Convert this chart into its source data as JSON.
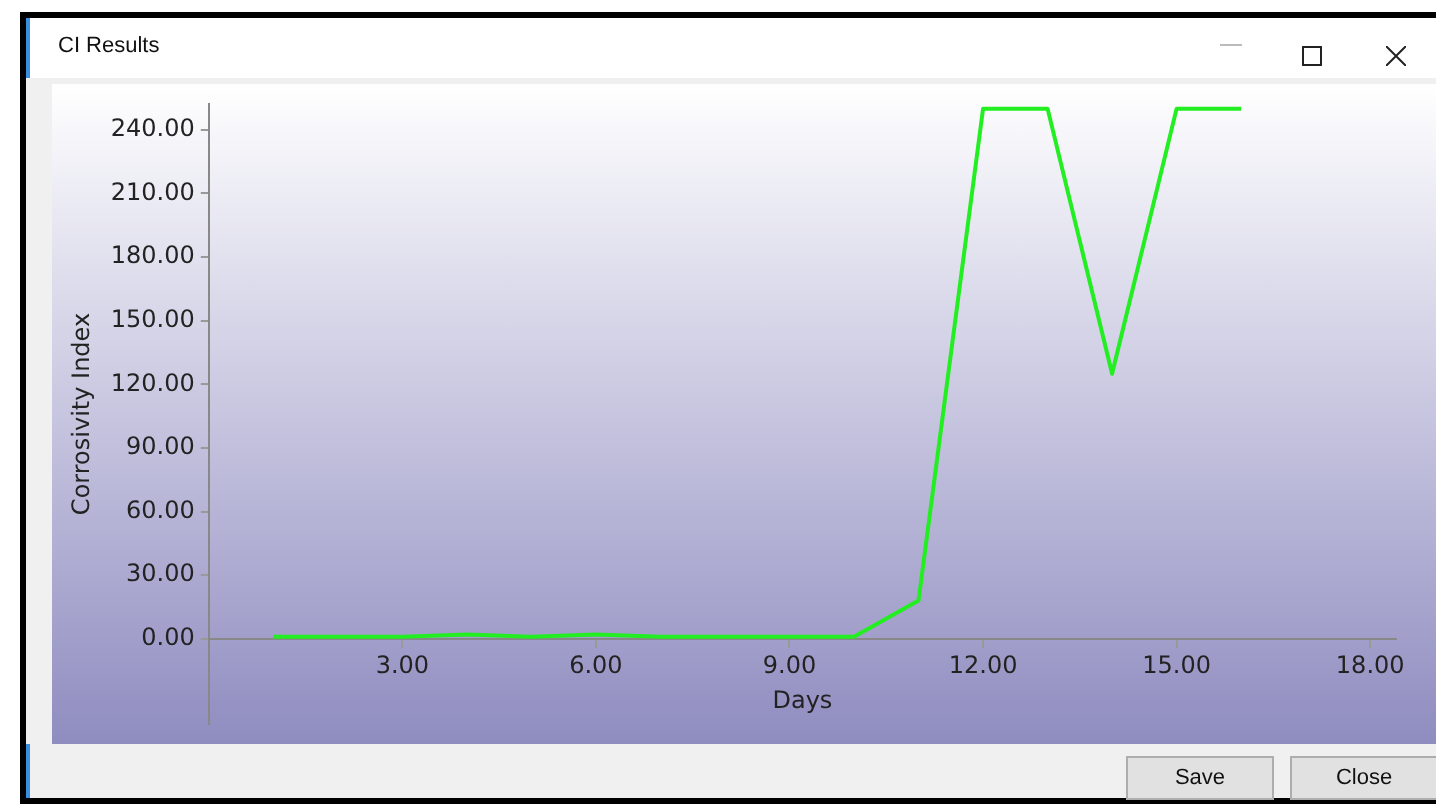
{
  "chart_data": {
    "type": "line",
    "title": "CI Results",
    "xlabel": "Days",
    "ylabel": "Corrosivity Index",
    "x": [
      1,
      2,
      3,
      4,
      5,
      6,
      7,
      8,
      9,
      10,
      11,
      12,
      13,
      14,
      15,
      16
    ],
    "series": [
      {
        "color": "#22ee22",
        "values": [
          1,
          1,
          1,
          2,
          1,
          2,
          1,
          1,
          1,
          1,
          18,
          250,
          250,
          125,
          250,
          250
        ]
      }
    ],
    "xlim": [
      0,
      18.4
    ],
    "ylim": [
      -40,
      252
    ],
    "xticks": [
      {
        "value": 3,
        "label": "3.00"
      },
      {
        "value": 6,
        "label": "6.00"
      },
      {
        "value": 9,
        "label": "9.00"
      },
      {
        "value": 12,
        "label": "12.00"
      },
      {
        "value": 15,
        "label": "15.00"
      },
      {
        "value": 18,
        "label": "18.00"
      }
    ],
    "yticks": [
      {
        "value": 0,
        "label": "0.00"
      },
      {
        "value": 30,
        "label": "30.00"
      },
      {
        "value": 60,
        "label": "60.00"
      },
      {
        "value": 90,
        "label": "90.00"
      },
      {
        "value": 120,
        "label": "120.00"
      },
      {
        "value": 150,
        "label": "150.00"
      },
      {
        "value": 180,
        "label": "180.00"
      },
      {
        "value": 210,
        "label": "210.00"
      },
      {
        "value": 240,
        "label": "240.00"
      }
    ],
    "annotations": [
      "Save",
      "Close"
    ],
    "grid": false,
    "marker": "none",
    "line_style": "solid"
  }
}
